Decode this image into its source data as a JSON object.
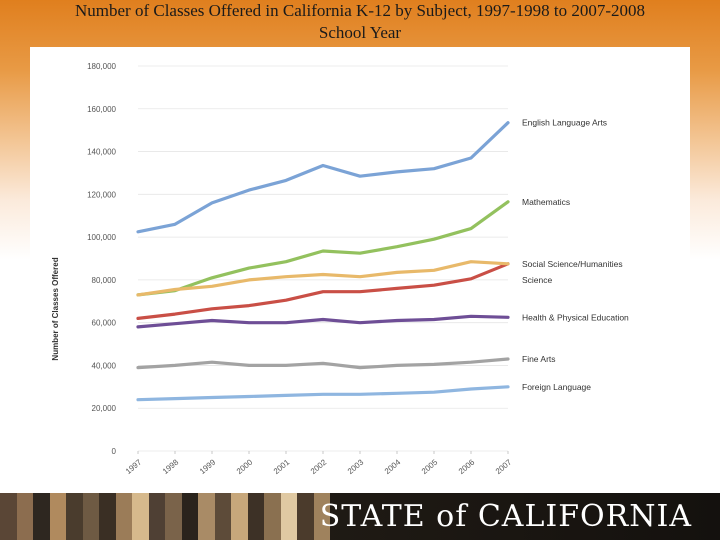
{
  "title": {
    "line1": "Number of Classes Offered in California K-12 by Subject, 1997-1998 to 2007-2008",
    "line2": "School Year"
  },
  "footer": {
    "text": "STATE of CALIFORNIA"
  },
  "chart_data": {
    "type": "line",
    "title": "Number of Classes Offered in California K-12 by Subject, 1997-1998 to 2007-2008 School Year",
    "xlabel": "",
    "ylabel": "Number of Classes Offered",
    "x": [
      "1997",
      "1998",
      "1999",
      "2000",
      "2001",
      "2002",
      "2003",
      "2004",
      "2005",
      "2006",
      "2007"
    ],
    "ylim": [
      0,
      180000
    ],
    "yticks": [
      0,
      20000,
      40000,
      60000,
      80000,
      100000,
      120000,
      140000,
      160000,
      180000
    ],
    "ytick_labels": [
      "0",
      "20,000",
      "40,000",
      "60,000",
      "80,000",
      "100,000",
      "120,000",
      "140,000",
      "160,000",
      "180,000"
    ],
    "grid": true,
    "legend": "labels at line ends",
    "series": [
      {
        "name": "English Language Arts",
        "color": "#7ba3d6",
        "values": [
          102500,
          106000,
          116000,
          122000,
          126500,
          133500,
          128500,
          130500,
          132000,
          137000,
          153500
        ]
      },
      {
        "name": "Mathematics",
        "color": "#93c15e",
        "values": [
          73000,
          75000,
          81000,
          85500,
          88500,
          93500,
          92500,
          95500,
          99000,
          104000,
          116500
        ]
      },
      {
        "name": "Social Science/Humanities",
        "color": "#c94f46",
        "values": [
          62000,
          64000,
          66500,
          68000,
          70500,
          74500,
          74500,
          76000,
          77500,
          80500,
          87500
        ]
      },
      {
        "name": "Science",
        "color": "#e8b96a",
        "values": [
          73000,
          75500,
          77000,
          80000,
          81500,
          82500,
          81500,
          83500,
          84500,
          88500,
          87500
        ]
      },
      {
        "name": "Health & Physical Education",
        "color": "#6e4e96",
        "values": [
          58000,
          59500,
          61000,
          60000,
          60000,
          61500,
          60000,
          61000,
          61500,
          63000,
          62500
        ]
      },
      {
        "name": "Fine Arts",
        "color": "#a3a3a3",
        "values": [
          39000,
          40000,
          41500,
          40000,
          40000,
          41000,
          39000,
          40000,
          40500,
          41500,
          43000
        ]
      },
      {
        "name": "Foreign Language",
        "color": "#8fb6e0",
        "values": [
          24000,
          24500,
          25000,
          25500,
          26000,
          26500,
          26500,
          27000,
          27500,
          29000,
          30000
        ]
      }
    ]
  }
}
